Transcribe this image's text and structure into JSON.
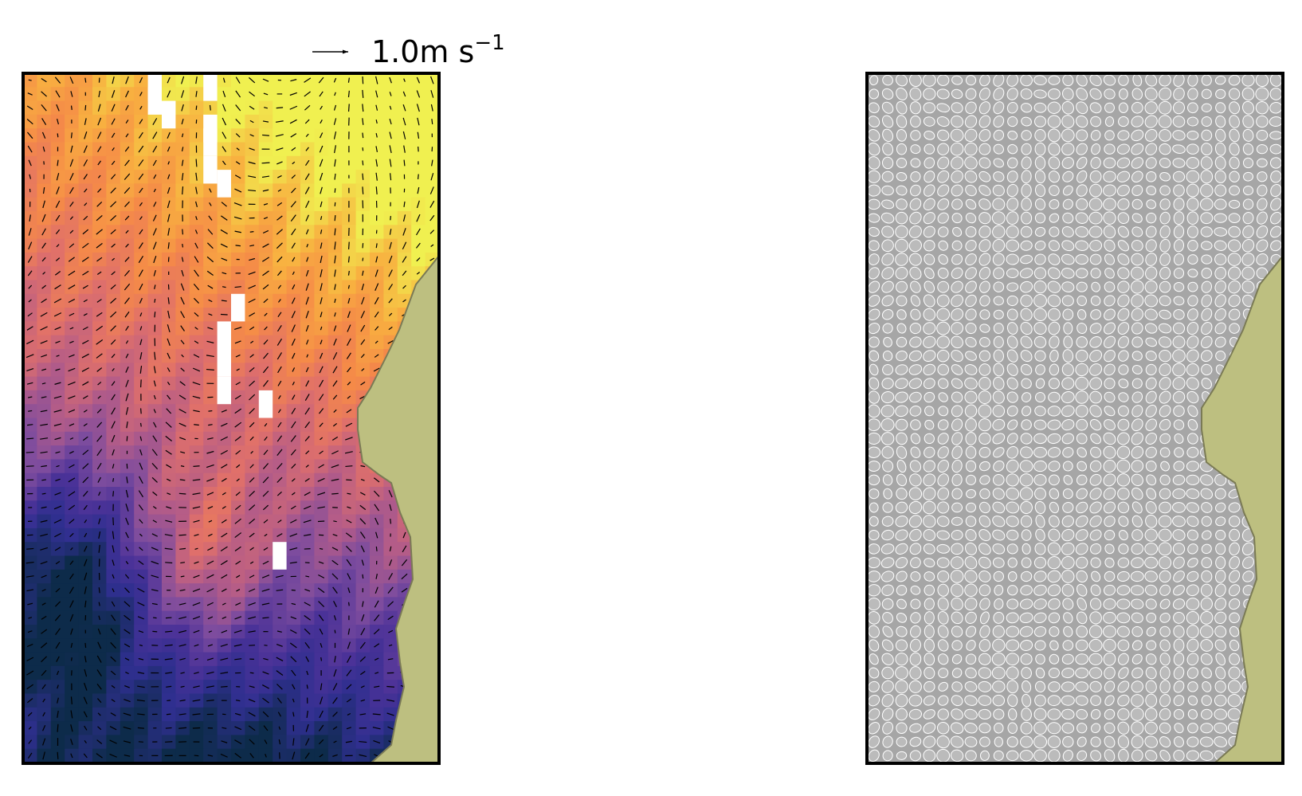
{
  "quiver_key": {
    "text": "1.0m s",
    "exponent": "−1"
  }
}
